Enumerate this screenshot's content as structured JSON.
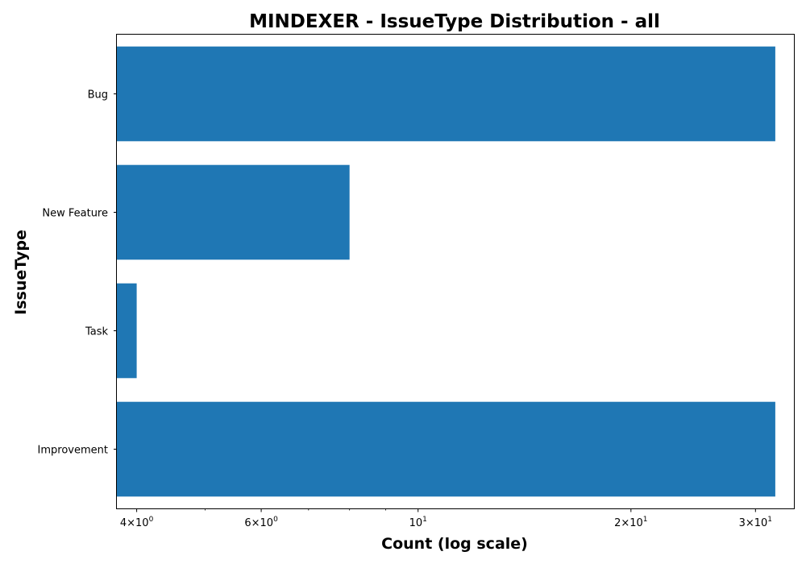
{
  "chart_data": {
    "type": "bar",
    "orientation": "horizontal",
    "title": "MINDEXER - IssueType Distribution - all",
    "xlabel": "Count (log scale)",
    "ylabel": "IssueType",
    "x_scale": "log",
    "xlim": [
      3.75,
      34
    ],
    "categories": [
      "Bug",
      "New Feature",
      "Task",
      "Improvement"
    ],
    "values": [
      32,
      8,
      4,
      32
    ],
    "bar_color": "#1f77b4",
    "grid": false,
    "legend": "none",
    "x_ticks": [
      {
        "value": 4,
        "base": "4",
        "exp": "0"
      },
      {
        "value": 6,
        "base": "6",
        "exp": "0"
      },
      {
        "value": 10,
        "base": "10",
        "exp": "1"
      },
      {
        "value": 20,
        "base": "2",
        "exp": "1"
      },
      {
        "value": 30,
        "base": "3",
        "exp": "1"
      }
    ],
    "minor_ticks": [
      5,
      7,
      8,
      9
    ]
  }
}
